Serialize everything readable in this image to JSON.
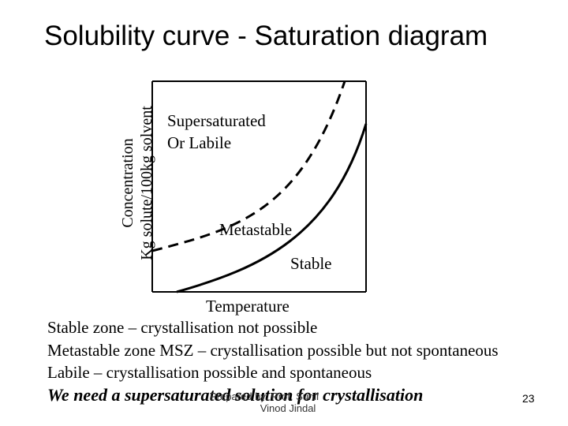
{
  "title": "Solubility curve - Saturation diagram",
  "y_axis": {
    "line1": "Concentration",
    "line2": "Kg solute/100kg solvent"
  },
  "x_axis": {
    "label": "Temperature"
  },
  "regions": {
    "supersaturated_line1": "Supersaturated",
    "supersaturated_line2": "Or Labile",
    "metastable": "Metastable",
    "stable": "Stable"
  },
  "curves": [
    {
      "name": "supersolubility-curve",
      "style": "dashed",
      "color": "#000000"
    },
    {
      "name": "solubility-curve",
      "style": "solid",
      "color": "#000000"
    }
  ],
  "notes": [
    "Stable zone – crystallisation not possible",
    "Metastable zone MSZ – crystallisation possible but not spontaneous",
    "Labile – crystallisation possible and spontaneous",
    "We need a supersaturated solution for crystallisation"
  ],
  "footer": {
    "line1": "Prepared by: Prof. Sunil",
    "line2": "Vinod Jindal"
  },
  "page_number": "23"
}
